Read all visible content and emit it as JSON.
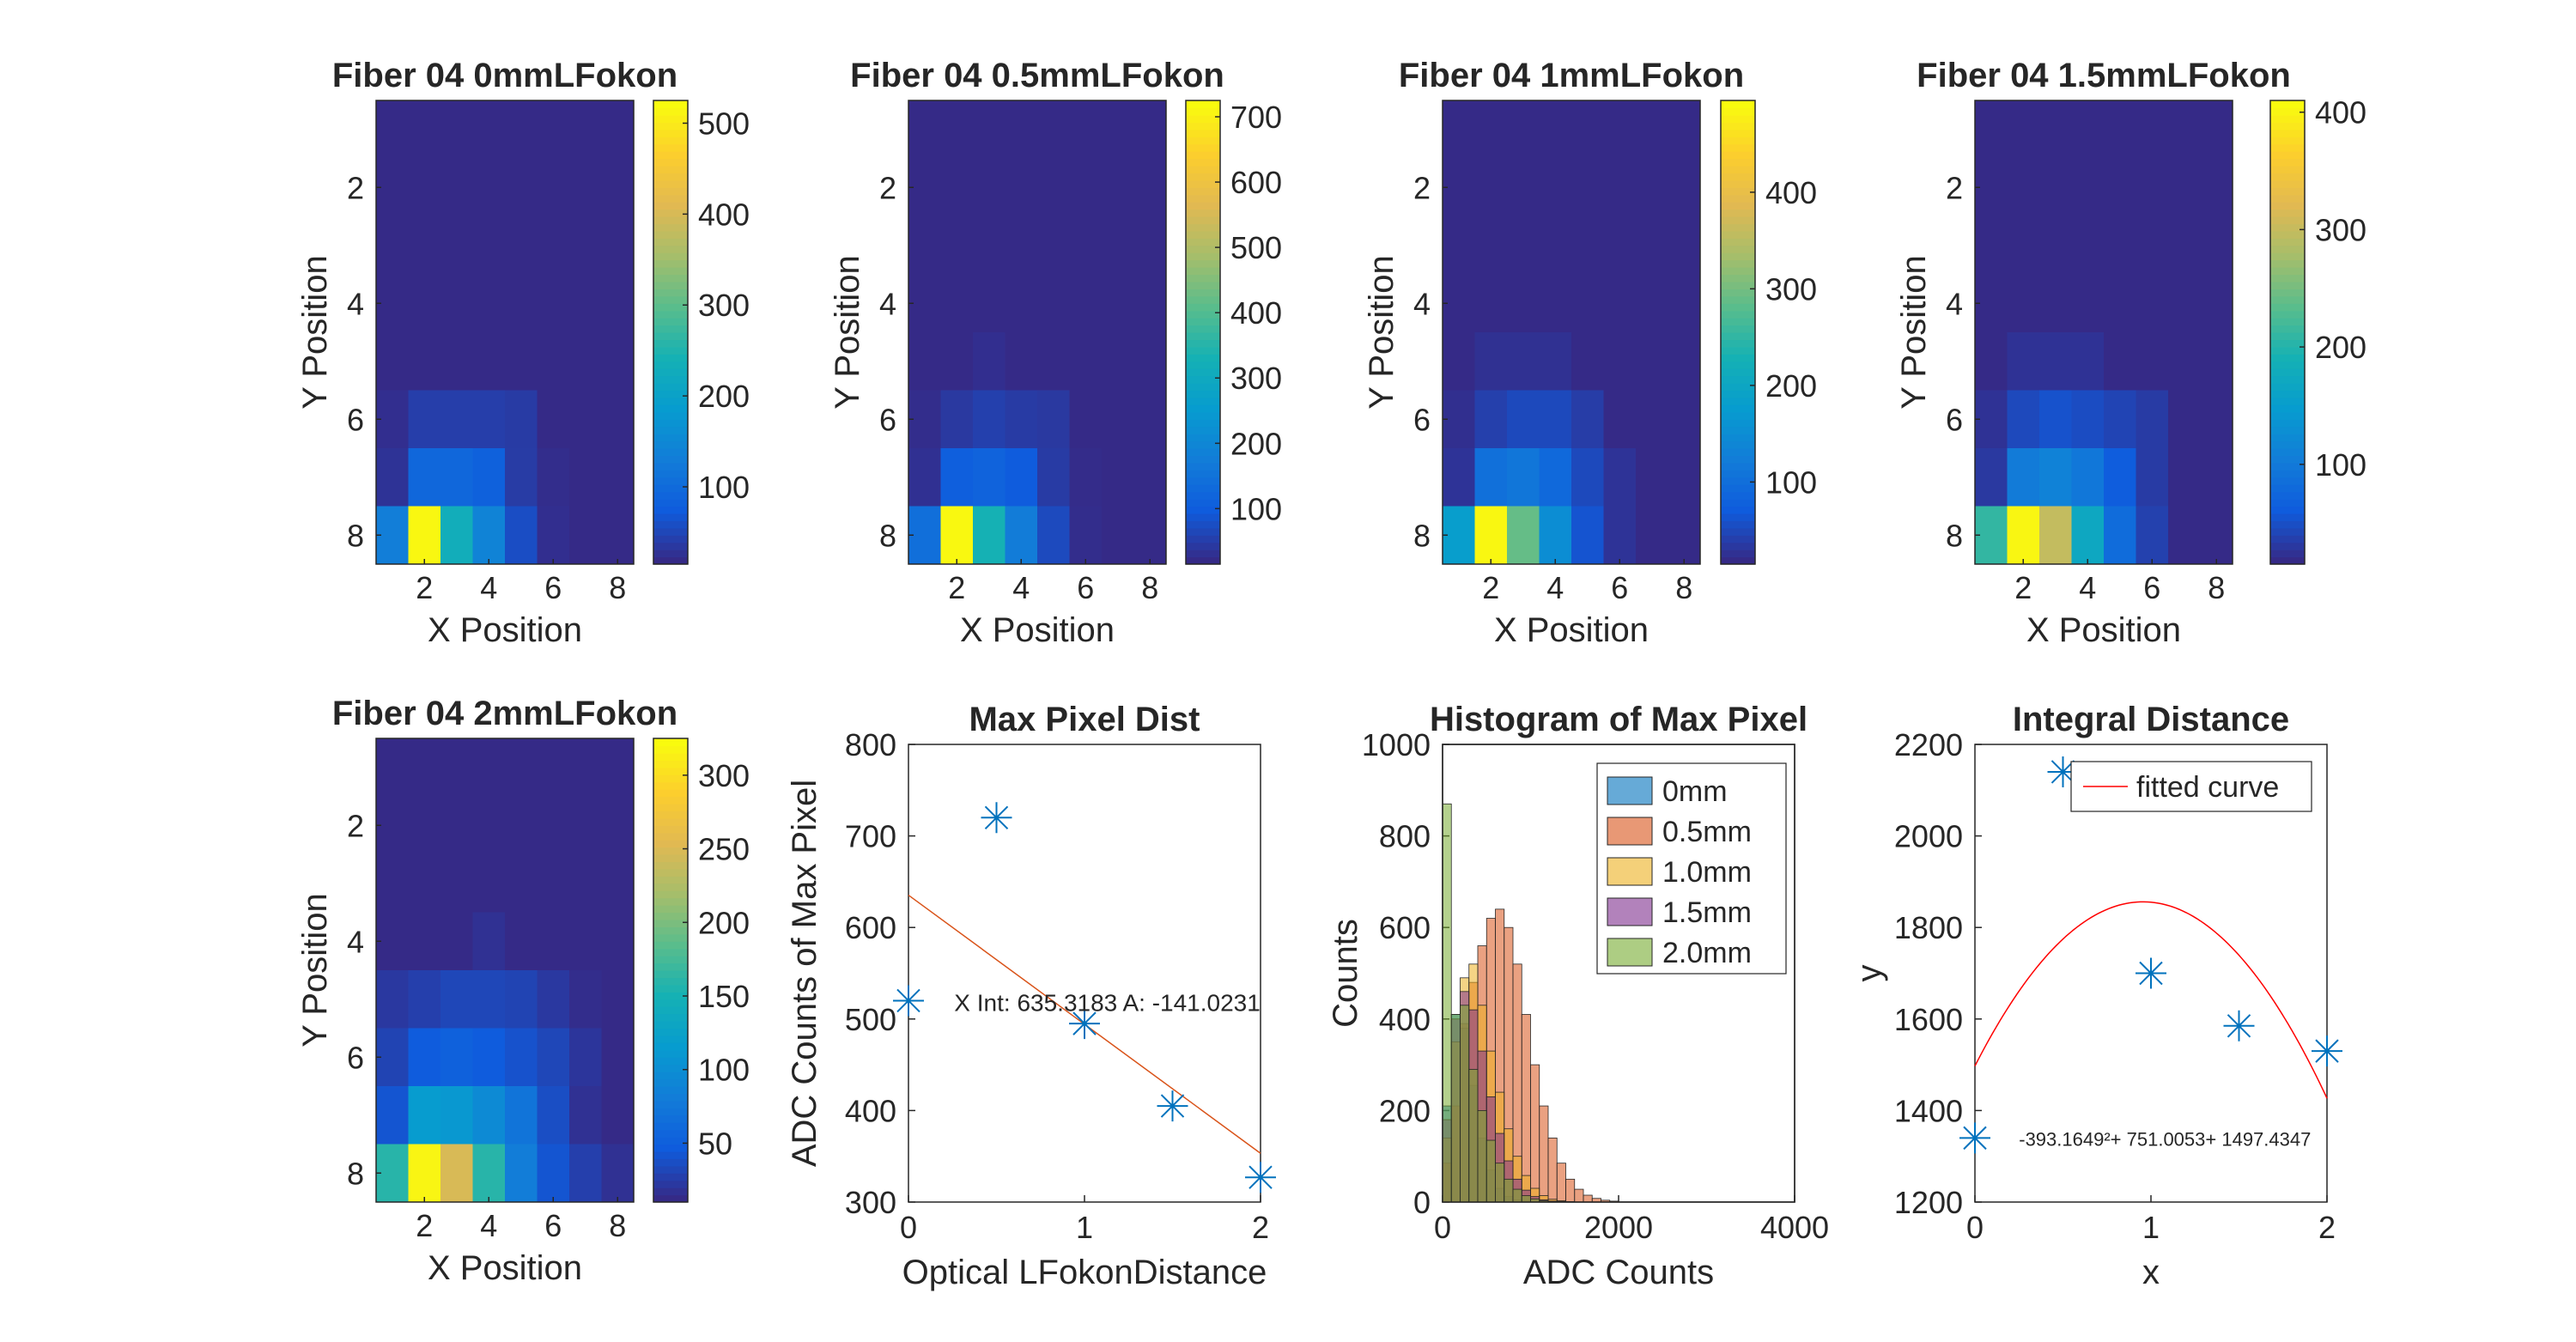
{
  "chart_data": [
    {
      "type": "heatmap",
      "title": "Fiber 04 0mmLFokon",
      "xlabel": "X Position",
      "ylabel": "Y Position",
      "xticks": [
        2,
        4,
        6,
        8
      ],
      "yticks": [
        2,
        4,
        6,
        8
      ],
      "colorbar_ticks": [
        100,
        200,
        300,
        400,
        500
      ],
      "clim": [
        15,
        525
      ],
      "colormap": "parula",
      "values": [
        [
          15,
          15,
          15,
          15,
          15,
          15,
          15,
          15
        ],
        [
          15,
          15,
          15,
          15,
          15,
          15,
          15,
          15
        ],
        [
          15,
          15,
          15,
          15,
          15,
          15,
          15,
          15
        ],
        [
          15,
          15,
          15,
          15,
          15,
          15,
          15,
          15
        ],
        [
          15,
          15,
          15,
          15,
          15,
          15,
          15,
          15
        ],
        [
          20,
          38,
          38,
          38,
          34,
          15,
          15,
          15
        ],
        [
          25,
          90,
          90,
          80,
          35,
          18,
          15,
          15
        ],
        [
          130,
          520,
          230,
          140,
          55,
          20,
          15,
          15
        ]
      ]
    },
    {
      "type": "heatmap",
      "title": "Fiber 04 0.5mmLFokon",
      "xlabel": "X Position",
      "ylabel": "Y Position",
      "xticks": [
        2,
        4,
        6,
        8
      ],
      "yticks": [
        2,
        4,
        6,
        8
      ],
      "colorbar_ticks": [
        100,
        200,
        300,
        400,
        500,
        600,
        700
      ],
      "clim": [
        15,
        725
      ],
      "colormap": "parula",
      "values": [
        [
          15,
          15,
          15,
          15,
          15,
          15,
          15,
          15
        ],
        [
          15,
          15,
          15,
          15,
          15,
          15,
          15,
          15
        ],
        [
          15,
          15,
          15,
          15,
          15,
          15,
          15,
          15
        ],
        [
          15,
          15,
          15,
          15,
          15,
          15,
          15,
          15
        ],
        [
          15,
          15,
          22,
          15,
          15,
          15,
          15,
          15
        ],
        [
          20,
          38,
          50,
          42,
          38,
          15,
          15,
          15
        ],
        [
          25,
          100,
          110,
          95,
          42,
          18,
          15,
          15
        ],
        [
          140,
          720,
          330,
          170,
          65,
          20,
          15,
          15
        ]
      ]
    },
    {
      "type": "heatmap",
      "title": "Fiber 04 1mmLFokon",
      "xlabel": "X Position",
      "ylabel": "Y Position",
      "xticks": [
        2,
        4,
        6,
        8
      ],
      "yticks": [
        2,
        4,
        6,
        8
      ],
      "colorbar_ticks": [
        100,
        200,
        300,
        400
      ],
      "clim": [
        15,
        495
      ],
      "colormap": "parula",
      "values": [
        [
          15,
          15,
          15,
          15,
          15,
          15,
          15,
          15
        ],
        [
          15,
          15,
          15,
          15,
          15,
          15,
          15,
          15
        ],
        [
          15,
          15,
          15,
          15,
          15,
          15,
          15,
          15
        ],
        [
          15,
          15,
          15,
          15,
          15,
          15,
          15,
          15
        ],
        [
          15,
          22,
          22,
          22,
          15,
          15,
          15,
          15
        ],
        [
          20,
          38,
          48,
          48,
          35,
          15,
          15,
          15
        ],
        [
          25,
          100,
          110,
          90,
          48,
          25,
          15,
          15
        ],
        [
          180,
          490,
          290,
          150,
          60,
          25,
          15,
          15
        ]
      ]
    },
    {
      "type": "heatmap",
      "title": "Fiber 04 1.5mmLFokon",
      "xlabel": "X Position",
      "ylabel": "Y Position",
      "xticks": [
        2,
        4,
        6,
        8
      ],
      "yticks": [
        2,
        4,
        6,
        8
      ],
      "colorbar_ticks": [
        100,
        200,
        300,
        400
      ],
      "clim": [
        15,
        410
      ],
      "colormap": "parula",
      "values": [
        [
          15,
          15,
          15,
          15,
          15,
          15,
          15,
          15
        ],
        [
          15,
          15,
          15,
          15,
          15,
          15,
          15,
          15
        ],
        [
          15,
          15,
          15,
          15,
          15,
          15,
          15,
          15
        ],
        [
          15,
          15,
          15,
          15,
          15,
          15,
          15,
          15
        ],
        [
          15,
          22,
          22,
          22,
          15,
          15,
          15,
          15
        ],
        [
          22,
          42,
          50,
          45,
          38,
          30,
          15,
          15
        ],
        [
          28,
          100,
          110,
          95,
          60,
          30,
          15,
          15
        ],
        [
          210,
          405,
          300,
          170,
          80,
          35,
          15,
          15
        ]
      ]
    },
    {
      "type": "heatmap",
      "title": "Fiber 04 2mmLFokon",
      "xlabel": "X Position",
      "ylabel": "Y Position",
      "xticks": [
        2,
        4,
        6,
        8
      ],
      "yticks": [
        2,
        4,
        6,
        8
      ],
      "colorbar_ticks": [
        50,
        100,
        150,
        200,
        250,
        300
      ],
      "clim": [
        10,
        325
      ],
      "colormap": "parula",
      "values": [
        [
          10,
          10,
          10,
          10,
          10,
          10,
          10,
          10
        ],
        [
          10,
          10,
          10,
          10,
          10,
          10,
          10,
          10
        ],
        [
          10,
          10,
          10,
          10,
          10,
          10,
          10,
          10
        ],
        [
          10,
          10,
          10,
          15,
          10,
          10,
          10,
          10
        ],
        [
          20,
          25,
          30,
          30,
          28,
          20,
          12,
          10
        ],
        [
          28,
          45,
          50,
          45,
          38,
          30,
          18,
          10
        ],
        [
          40,
          115,
          110,
          95,
          70,
          35,
          15,
          10
        ],
        [
          160,
          320,
          250,
          160,
          80,
          40,
          25,
          15
        ]
      ]
    },
    {
      "type": "scatter",
      "title": "Max Pixel Dist",
      "xlabel": "Optical LFokonDistance",
      "ylabel": "ADC Counts of Max Pixel",
      "xlim": [
        0,
        2
      ],
      "ylim": [
        300,
        800
      ],
      "xticks": [
        0,
        1,
        2
      ],
      "yticks": [
        300,
        400,
        500,
        600,
        700,
        800
      ],
      "x": [
        0,
        0.5,
        1.0,
        1.5,
        2.0
      ],
      "y": [
        520,
        720,
        495,
        405,
        327
      ],
      "fit_line": {
        "intercept": 635.3183,
        "slope": -141.0231,
        "color": "#d95319"
      },
      "annotation": "X Int: 635.3183 A: -141.0231",
      "marker_color": "#0072bd"
    },
    {
      "type": "bar",
      "title": "Histogram of Max Pixel",
      "xlabel": "ADC Counts",
      "ylabel": "Counts",
      "xlim": [
        0,
        4000
      ],
      "ylim": [
        0,
        1000
      ],
      "xticks": [
        0,
        2000,
        4000
      ],
      "yticks": [
        0,
        200,
        400,
        600,
        800,
        1000
      ],
      "bin_width": 100,
      "legend_position": "top-right",
      "series": [
        {
          "name": "0mm",
          "color": "#0072bd",
          "values": [
            210,
            410,
            380,
            255,
            140,
            70,
            30,
            12,
            5,
            2,
            1,
            0,
            0,
            0,
            0,
            0,
            0,
            0,
            0,
            0
          ]
        },
        {
          "name": "0.5mm",
          "color": "#d95319",
          "values": [
            85,
            210,
            390,
            480,
            560,
            620,
            640,
            600,
            520,
            410,
            300,
            210,
            140,
            85,
            50,
            28,
            15,
            8,
            4,
            2
          ]
        },
        {
          "name": "1.0mm",
          "color": "#edb120",
          "values": [
            140,
            350,
            490,
            520,
            430,
            330,
            240,
            160,
            100,
            58,
            30,
            14,
            6,
            3,
            1,
            0,
            0,
            0,
            0,
            0
          ]
        },
        {
          "name": "1.5mm",
          "color": "#7e2f8e",
          "values": [
            180,
            400,
            460,
            420,
            330,
            230,
            150,
            90,
            50,
            26,
            12,
            5,
            2,
            1,
            0,
            0,
            0,
            0,
            0,
            0
          ]
        },
        {
          "name": "2.0mm",
          "color": "#77ac30",
          "values": [
            870,
            410,
            430,
            290,
            200,
            135,
            85,
            50,
            28,
            14,
            7,
            3,
            1,
            0,
            0,
            0,
            0,
            0,
            0,
            0
          ]
        }
      ]
    },
    {
      "type": "scatter",
      "title": "Integral Distance",
      "xlabel": "x",
      "ylabel": "y",
      "xlim": [
        0,
        2
      ],
      "ylim": [
        1200,
        2200
      ],
      "xticks": [
        0,
        1,
        2
      ],
      "yticks": [
        1200,
        1400,
        1600,
        1800,
        2000,
        2200
      ],
      "x": [
        0,
        0.5,
        1.0,
        1.5,
        2.0
      ],
      "y": [
        1340,
        2140,
        1700,
        1585,
        1530
      ],
      "fit_curve": {
        "a": -393.1649,
        "b": 751.0053,
        "c": 1497.4347,
        "color": "#ff0000"
      },
      "annotation": "-393.1649²+ 751.0053+ 1497.4347",
      "legend": "fitted curve",
      "legend_position": "top-right",
      "marker_color": "#0072bd"
    }
  ]
}
